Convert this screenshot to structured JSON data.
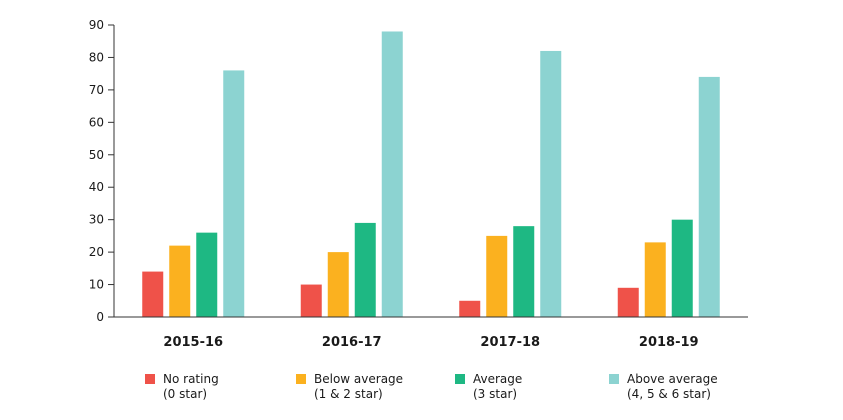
{
  "chart_data": {
    "type": "bar",
    "title": "",
    "xlabel": "",
    "ylabel": "",
    "ylim": [
      0,
      90
    ],
    "yticks": [
      0,
      10,
      20,
      30,
      40,
      50,
      60,
      70,
      80,
      90
    ],
    "grid": false,
    "legend_position": "bottom",
    "categories": [
      "2015-16",
      "2016-17",
      "2017-18",
      "2018-19"
    ],
    "series": [
      {
        "name": "No rating (0 star)",
        "legend_lines": [
          "No rating",
          "(0 star)"
        ],
        "color": "#ef5249",
        "values": [
          14,
          10,
          5,
          9
        ]
      },
      {
        "name": "Below average (1 & 2 star)",
        "legend_lines": [
          "Below average",
          "(1 & 2 star)"
        ],
        "color": "#fbb11f",
        "values": [
          22,
          20,
          25,
          23
        ]
      },
      {
        "name": "Average (3 star)",
        "legend_lines": [
          "Average",
          "(3 star)"
        ],
        "color": "#1eb883",
        "values": [
          26,
          29,
          28,
          30
        ]
      },
      {
        "name": "Above average (4, 5 & 6 star)",
        "legend_lines": [
          "Above average",
          "(4, 5 & 6 star)"
        ],
        "color": "#8cd3d1",
        "values": [
          76,
          88,
          82,
          74
        ]
      }
    ]
  },
  "colors": {
    "axis": "#333333",
    "text": "#1a1a1a"
  }
}
